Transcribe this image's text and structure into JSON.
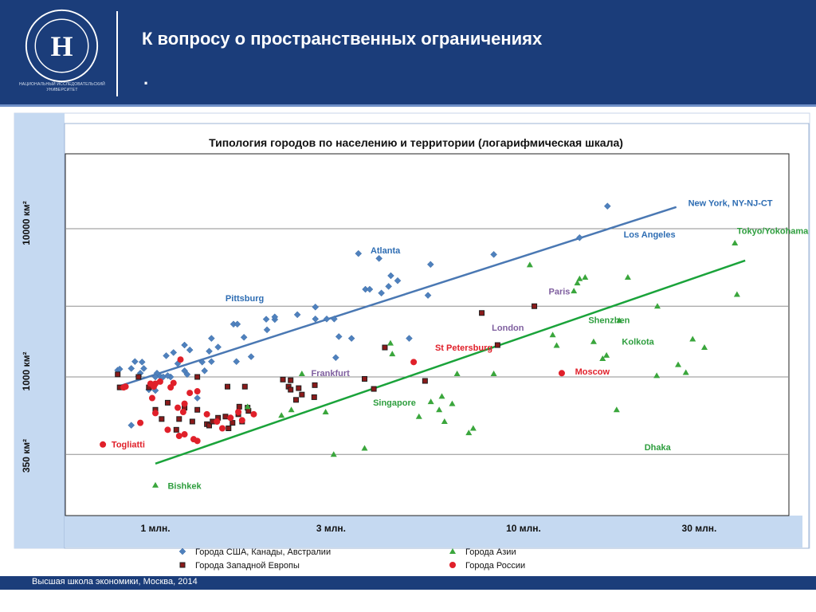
{
  "header": {
    "title": "К вопросу о пространственных ограничениях",
    "dot": ".",
    "university_name": "НАЦИОНАЛЬНЫЙ ИССЛЕДОВАТЕЛЬСКИЙ УНИВЕРСИТЕТ"
  },
  "footer": {
    "text": "Высшая школа экономики, Москва, 2014"
  },
  "colors": {
    "header_bg": "#1b3d7a",
    "panel_bg": "#c5d9f1",
    "usa": "#4f81bd",
    "europe": "#1f1f1f",
    "europe_fill": "#8b1a1a",
    "asia": "#3aa63c",
    "russia": "#e0202a",
    "europe_label": "#7f5f9f",
    "usa_label": "#2e6db3",
    "asia_label": "#2e9e3e",
    "russia_label": "#e0202a"
  },
  "chart_data": {
    "type": "scatter",
    "title": "Типология городов по населению и территории (логарифмическая шкала)",
    "x_scale": "log",
    "y_scale": "log",
    "x_ticks": [
      {
        "value": 1,
        "label": "1 млн."
      },
      {
        "value": 3,
        "label": "3 млн."
      },
      {
        "value": 10,
        "label": "10 млн."
      },
      {
        "value": 30,
        "label": "30 млн."
      }
    ],
    "y_ticks": [
      {
        "value": 350,
        "label": "350 км²"
      },
      {
        "value": 1000,
        "label": "1000 км²"
      },
      {
        "value": 10000,
        "label": "10000 км²"
      }
    ],
    "legend": {
      "placement": "bottom",
      "items": [
        {
          "name": "Города США, Канады, Австралии",
          "series": "usa"
        },
        {
          "name": "Города Азии",
          "series": "asia"
        },
        {
          "name": "Города Западной Европы",
          "series": "europe"
        },
        {
          "name": "Города России",
          "series": "russia"
        }
      ]
    },
    "series": [
      {
        "name": "Города США, Канады, Австралии",
        "key": "usa",
        "marker": "diamond",
        "points": [
          [
            0.79,
            1110
          ],
          [
            0.8,
            1130
          ],
          [
            0.86,
            1140
          ],
          [
            0.88,
            1270
          ],
          [
            0.9,
            1010
          ],
          [
            0.91,
            1060
          ],
          [
            0.92,
            1260
          ],
          [
            0.93,
            1140
          ],
          [
            0.86,
            472
          ],
          [
            0.96,
            820
          ],
          [
            1.0,
            810
          ],
          [
            1.01,
            1060
          ],
          [
            1.03,
            1010
          ],
          [
            1.05,
            1000
          ],
          [
            1.1,
            1000
          ],
          [
            1.12,
            1460
          ],
          [
            1.07,
            1390
          ],
          [
            1.15,
            1230
          ],
          [
            1.2,
            1100
          ],
          [
            1.22,
            1040
          ],
          [
            1.24,
            1520
          ],
          [
            1.2,
            1640
          ],
          [
            1.34,
            1260
          ],
          [
            1.36,
            1100
          ],
          [
            1.4,
            1490
          ],
          [
            1.42,
            1270
          ],
          [
            1.42,
            1820
          ],
          [
            1.48,
            1590
          ],
          [
            1.63,
            2270
          ],
          [
            1.66,
            1270
          ],
          [
            1.74,
            1850
          ],
          [
            1.82,
            1370
          ],
          [
            2.01,
            2080
          ],
          [
            2.11,
            2440
          ],
          [
            2.11,
            2540
          ],
          [
            2.43,
            2630
          ],
          [
            2.72,
            2460
          ],
          [
            2.72,
            2960
          ],
          [
            2.92,
            2460
          ],
          [
            3.06,
            2460
          ],
          [
            3.09,
            1350
          ],
          [
            3.15,
            1870
          ],
          [
            3.41,
            1820
          ],
          [
            3.72,
            3900
          ],
          [
            3.82,
            3900
          ],
          [
            4.11,
            3680
          ],
          [
            4.3,
            4080
          ],
          [
            4.55,
            4460
          ],
          [
            4.36,
            4820
          ],
          [
            4.89,
            1820
          ],
          [
            5.5,
            3550
          ],
          [
            5.59,
            5740
          ],
          [
            8.3,
            6700
          ],
          [
            14.2,
            8700
          ],
          [
            16.9,
            14200
          ],
          [
            1.08,
            1020
          ],
          [
            1.3,
            720
          ],
          [
            2.0,
            2450
          ],
          [
            1.67,
            2270
          ],
          [
            1.0,
            1000
          ],
          [
            3.56,
            6800
          ],
          [
            4.05,
            6300
          ]
        ]
      },
      {
        "name": "Города Западной Европы",
        "key": "europe",
        "marker": "square",
        "points": [
          [
            0.79,
            1040
          ],
          [
            0.8,
            850
          ],
          [
            0.96,
            850
          ],
          [
            1.0,
            600
          ],
          [
            1.04,
            520
          ],
          [
            1.08,
            670
          ],
          [
            1.14,
            440
          ],
          [
            1.16,
            520
          ],
          [
            1.2,
            620
          ],
          [
            1.26,
            500
          ],
          [
            1.3,
            600
          ],
          [
            1.38,
            480
          ],
          [
            1.4,
            470
          ],
          [
            1.43,
            500
          ],
          [
            1.48,
            530
          ],
          [
            1.55,
            540
          ],
          [
            1.57,
            860
          ],
          [
            1.68,
            560
          ],
          [
            1.72,
            500
          ],
          [
            1.78,
            620
          ],
          [
            1.58,
            450
          ],
          [
            1.62,
            490
          ],
          [
            1.69,
            630
          ],
          [
            1.79,
            590
          ],
          [
            2.22,
            960
          ],
          [
            2.3,
            860
          ],
          [
            2.33,
            820
          ],
          [
            2.33,
            950
          ],
          [
            2.41,
            700
          ],
          [
            2.5,
            760
          ],
          [
            2.45,
            840
          ],
          [
            2.7,
            730
          ],
          [
            2.71,
            880
          ],
          [
            3.7,
            970
          ],
          [
            3.92,
            830
          ],
          [
            4.2,
            1580
          ],
          [
            5.4,
            940
          ],
          [
            7.7,
            2700
          ],
          [
            8.5,
            1640
          ],
          [
            10.7,
            3000
          ],
          [
            0.9,
            1000
          ],
          [
            1.3,
            1000
          ],
          [
            1.75,
            860
          ]
        ]
      },
      {
        "name": "Города Азии",
        "key": "asia",
        "marker": "triangle",
        "points": [
          [
            1.0,
            186
          ],
          [
            1.78,
            630
          ],
          [
            2.2,
            550
          ],
          [
            2.34,
            600
          ],
          [
            2.5,
            1050
          ],
          [
            2.9,
            580
          ],
          [
            3.05,
            300
          ],
          [
            3.7,
            330
          ],
          [
            4.35,
            1690
          ],
          [
            4.4,
            1430
          ],
          [
            5.2,
            540
          ],
          [
            5.6,
            680
          ],
          [
            5.9,
            600
          ],
          [
            6.1,
            500
          ],
          [
            6.0,
            740
          ],
          [
            6.4,
            660
          ],
          [
            6.6,
            1050
          ],
          [
            7.1,
            420
          ],
          [
            7.3,
            450
          ],
          [
            8.3,
            1050
          ],
          [
            10.4,
            5700
          ],
          [
            12.0,
            1920
          ],
          [
            12.3,
            1630
          ],
          [
            13.7,
            3800
          ],
          [
            14.0,
            4300
          ],
          [
            14.2,
            4600
          ],
          [
            14.7,
            4700
          ],
          [
            15.5,
            1730
          ],
          [
            16.4,
            1330
          ],
          [
            16.8,
            1400
          ],
          [
            17.9,
            600
          ],
          [
            18.2,
            2400
          ],
          [
            19.2,
            4700
          ],
          [
            23.0,
            1020
          ],
          [
            23.1,
            3000
          ],
          [
            26.3,
            1210
          ],
          [
            27.6,
            1070
          ],
          [
            28.8,
            1800
          ],
          [
            31.0,
            1580
          ],
          [
            37.5,
            8000
          ],
          [
            38.0,
            3600
          ]
        ]
      },
      {
        "name": "Города России",
        "key": "russia",
        "marker": "circle",
        "points": [
          [
            0.72,
            350
          ],
          [
            0.82,
            850
          ],
          [
            0.91,
            490
          ],
          [
            0.99,
            860
          ],
          [
            1.0,
            570
          ],
          [
            1.03,
            930
          ],
          [
            1.08,
            440
          ],
          [
            1.1,
            850
          ],
          [
            1.15,
            620
          ],
          [
            1.19,
            580
          ],
          [
            1.2,
            660
          ],
          [
            1.24,
            780
          ],
          [
            1.3,
            800
          ],
          [
            1.38,
            560
          ],
          [
            1.47,
            500
          ],
          [
            1.16,
            400
          ],
          [
            1.2,
            410
          ],
          [
            1.27,
            380
          ],
          [
            1.3,
            370
          ],
          [
            1.52,
            450
          ],
          [
            1.6,
            530
          ],
          [
            1.68,
            580
          ],
          [
            1.72,
            510
          ],
          [
            1.85,
            560
          ],
          [
            0.98,
            720
          ],
          [
            0.83,
            860
          ],
          [
            1.0,
            900
          ],
          [
            0.97,
            900
          ],
          [
            1.12,
            910
          ],
          [
            1.17,
            1310
          ],
          [
            5.03,
            1260
          ],
          [
            12.7,
            1060
          ]
        ]
      }
    ],
    "trendlines": [
      {
        "series": "usa",
        "from": [
          0.79,
          860
        ],
        "to": [
          26.0,
          14000
        ]
      },
      {
        "series": "asia",
        "from": [
          1.0,
          260
        ],
        "to": [
          40.0,
          6100
        ]
      }
    ],
    "annotations": [
      {
        "text": "New York, NY-NJ-CT",
        "x": 28.0,
        "y": 14200,
        "series": "usa"
      },
      {
        "text": "Los Angeles",
        "x": 18.7,
        "y": 8700,
        "series": "usa"
      },
      {
        "text": "Atlanta",
        "x": 3.84,
        "y": 6800,
        "series": "usa"
      },
      {
        "text": "Pittsburg",
        "x": 1.55,
        "y": 3250,
        "series": "usa"
      },
      {
        "text": "Paris",
        "x": 11.7,
        "y": 3600,
        "series": "europe"
      },
      {
        "text": "London",
        "x": 8.2,
        "y": 2050,
        "series": "europe"
      },
      {
        "text": "Frankfurt",
        "x": 2.65,
        "y": 1010,
        "series": "europe"
      },
      {
        "text": "Tokyo/Yokohama",
        "x": 38.0,
        "y": 9200,
        "series": "asia"
      },
      {
        "text": "Shenzhen",
        "x": 15.0,
        "y": 2300,
        "series": "asia"
      },
      {
        "text": "Kolkota",
        "x": 18.5,
        "y": 1650,
        "series": "asia"
      },
      {
        "text": "Singapore",
        "x": 3.9,
        "y": 640,
        "series": "asia"
      },
      {
        "text": "Dhaka",
        "x": 21.3,
        "y": 320,
        "series": "asia"
      },
      {
        "text": "Bishkek",
        "x": 1.08,
        "y": 176,
        "series": "asia"
      },
      {
        "text": "St Petersburg",
        "x": 5.75,
        "y": 1500,
        "series": "russia"
      },
      {
        "text": "Moscow",
        "x": 13.8,
        "y": 1040,
        "series": "russia"
      },
      {
        "text": "Togliatti",
        "x": 0.76,
        "y": 335,
        "series": "russia"
      }
    ]
  }
}
